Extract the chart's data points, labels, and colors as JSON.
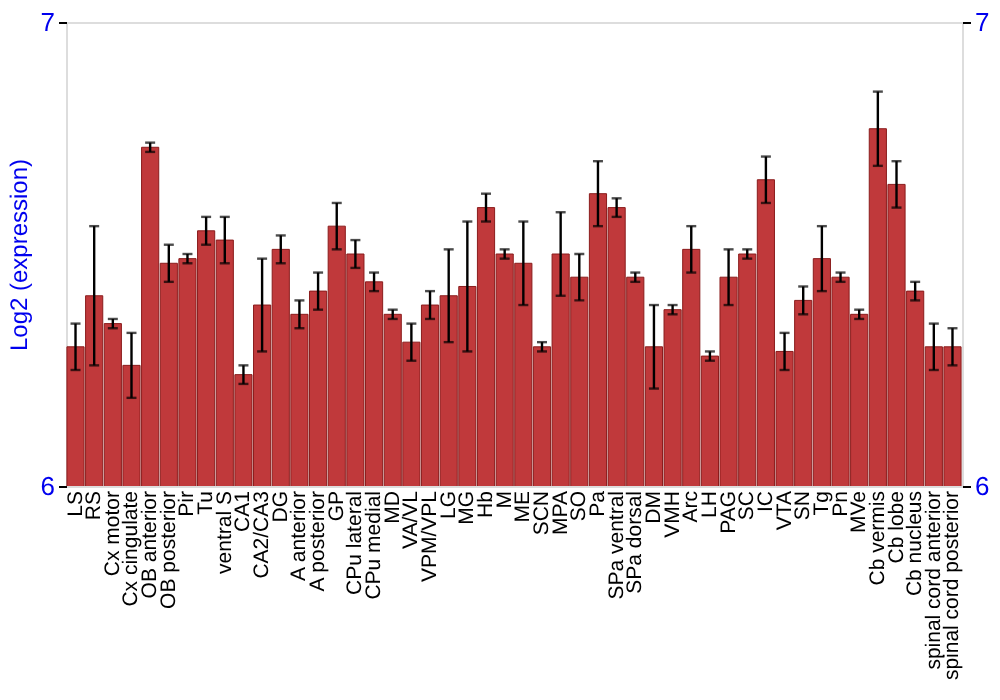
{
  "chart_data": {
    "type": "bar",
    "ylabel": "Log2 (expression)",
    "categories": [
      "LS",
      "RS",
      "Cx motor",
      "Cx cingulate",
      "OB anterior",
      "OB posterior",
      "Pir",
      "Tu",
      "ventral S",
      "CA1",
      "CA2/CA3",
      "DG",
      "A anterior",
      "A posterior",
      "GP",
      "CPu lateral",
      "CPu medial",
      "MD",
      "VA/VL",
      "VPM/VPL",
      "LG",
      "MG",
      "Hb",
      "M",
      "ME",
      "SCN",
      "MPA",
      "SO",
      "Pa",
      "SPa ventral",
      "SPa dorsal",
      "DM",
      "VMH",
      "Arc",
      "LH",
      "PAG",
      "SC",
      "IC",
      "VTA",
      "SN",
      "Tg",
      "Pn",
      "MVe",
      "Cb vermis",
      "Cb lobe",
      "Cb nucleus",
      "spinal cord anterior",
      "spinal cord posterior"
    ],
    "values": [
      6.3,
      6.41,
      6.35,
      6.26,
      6.73,
      6.48,
      6.49,
      6.55,
      6.53,
      6.24,
      6.39,
      6.51,
      6.37,
      6.42,
      6.56,
      6.5,
      6.44,
      6.37,
      6.31,
      6.39,
      6.41,
      6.43,
      6.6,
      6.5,
      6.48,
      6.3,
      6.5,
      6.45,
      6.63,
      6.6,
      6.45,
      6.3,
      6.38,
      6.51,
      6.28,
      6.45,
      6.5,
      6.66,
      6.29,
      6.4,
      6.49,
      6.45,
      6.37,
      6.77,
      6.65,
      6.42,
      6.3,
      6.3
    ],
    "errors": [
      0.05,
      0.15,
      0.01,
      0.07,
      0.01,
      0.04,
      0.01,
      0.03,
      0.05,
      0.02,
      0.1,
      0.03,
      0.03,
      0.04,
      0.05,
      0.03,
      0.02,
      0.01,
      0.04,
      0.03,
      0.1,
      0.14,
      0.03,
      0.01,
      0.09,
      0.01,
      0.09,
      0.05,
      0.07,
      0.02,
      0.01,
      0.09,
      0.01,
      0.05,
      0.01,
      0.06,
      0.01,
      0.05,
      0.04,
      0.03,
      0.07,
      0.01,
      0.01,
      0.08,
      0.05,
      0.02,
      0.05,
      0.04
    ],
    "color": "#c0393b",
    "ylim": [
      6,
      7
    ],
    "yticks": [
      6,
      7
    ],
    "y2lim": [
      6,
      7
    ],
    "y2ticks": [
      6,
      7
    ],
    "grid": false
  }
}
